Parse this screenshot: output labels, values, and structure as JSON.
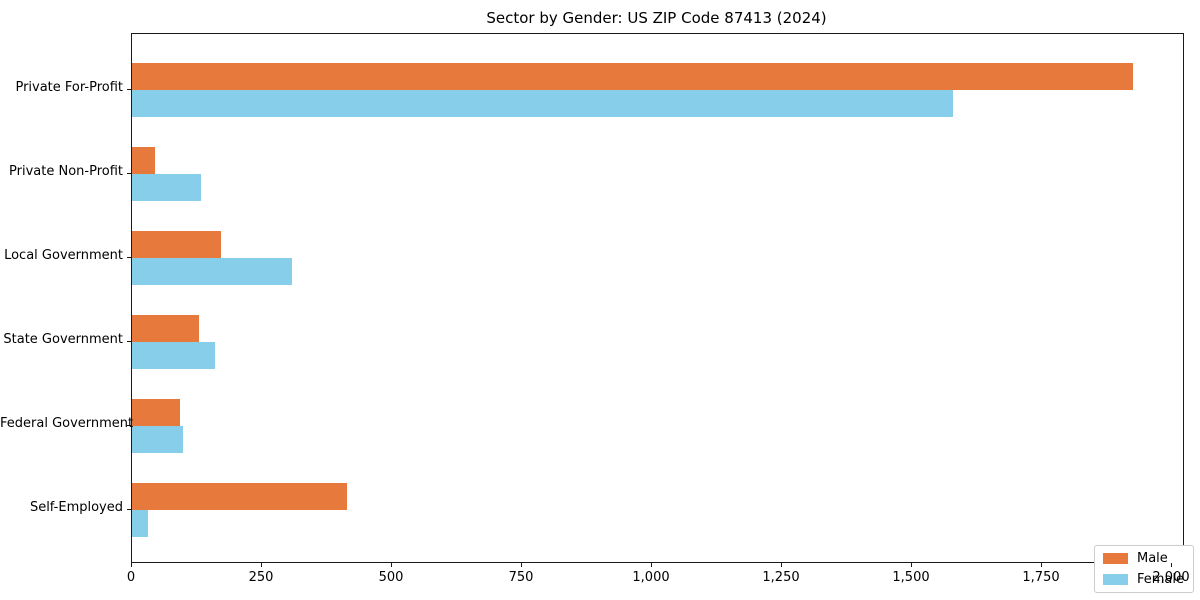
{
  "chart_data": {
    "type": "bar",
    "orientation": "horizontal",
    "title": "Sector by Gender: US ZIP Code 87413 (2024)",
    "categories": [
      "Private For-Profit",
      "Private Non-Profit",
      "Local Government",
      "State Government",
      "Federal Government",
      "Self-Employed"
    ],
    "series": [
      {
        "name": "Male",
        "color": "#E8793D",
        "values": [
          1925,
          45,
          172,
          128,
          92,
          413
        ]
      },
      {
        "name": "Female",
        "color": "#87CEEB",
        "values": [
          1580,
          133,
          307,
          160,
          99,
          30
        ]
      }
    ],
    "xlabel": "",
    "ylabel": "",
    "xlim": [
      0,
      2022
    ],
    "xticks": [
      0,
      250,
      500,
      750,
      1000,
      1250,
      1500,
      1750,
      2000
    ],
    "xtick_labels": [
      "0",
      "250",
      "500",
      "750",
      "1,000",
      "1,250",
      "1,500",
      "1,750",
      "2,000"
    ],
    "grid": false,
    "legend": {
      "position": "lower-right",
      "entries": [
        "Male",
        "Female"
      ]
    }
  }
}
